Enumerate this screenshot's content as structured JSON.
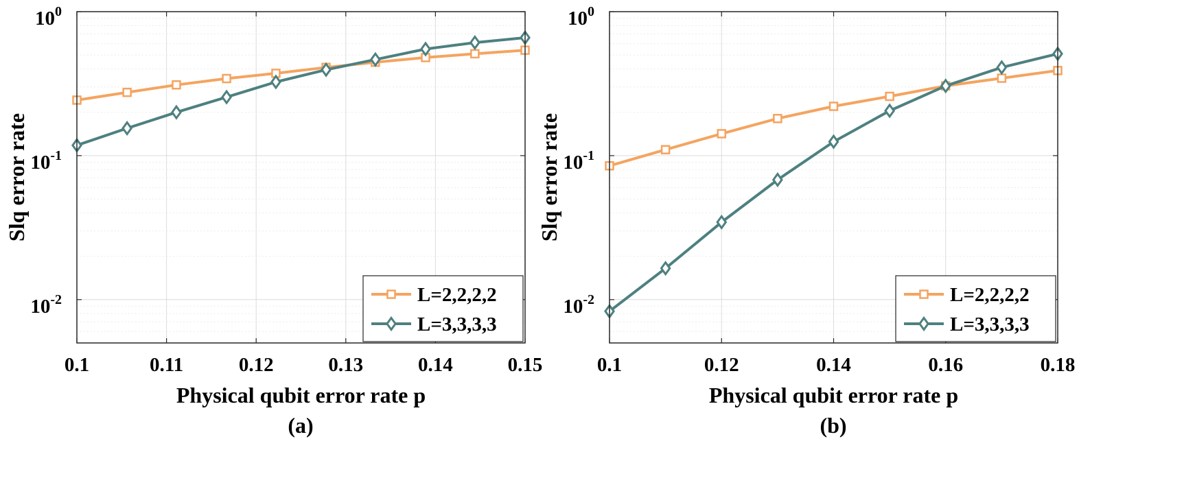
{
  "chart_data": [
    {
      "id": "a",
      "type": "line",
      "caption": "(a)",
      "xlabel": "Physical qubit error rate p",
      "ylabel": "Slq error rate",
      "yscale": "log",
      "xlim": [
        0.1,
        0.15
      ],
      "ylim": [
        0.005,
        1
      ],
      "xticks": [
        0.1,
        0.11,
        0.12,
        0.13,
        0.14,
        0.15
      ],
      "xtick_labels": [
        "0.1",
        "0.11",
        "0.12",
        "0.13",
        "0.14",
        "0.15"
      ],
      "yticks": [
        {
          "value": 0.01,
          "base": "10",
          "exp": "-2"
        },
        {
          "value": 0.1,
          "base": "10",
          "exp": "-1"
        },
        {
          "value": 1,
          "base": "10",
          "exp": "0"
        }
      ],
      "grid": true,
      "legend_position": "bottom-right",
      "x": [
        0.1,
        0.1056,
        0.1111,
        0.1167,
        0.1222,
        0.1278,
        0.1333,
        0.1389,
        0.1444,
        0.15
      ],
      "series": [
        {
          "name": "L=2,2,2,2",
          "marker": "square",
          "color": "#F4A460",
          "values": [
            0.243,
            0.275,
            0.31,
            0.343,
            0.373,
            0.41,
            0.445,
            0.48,
            0.51,
            0.54
          ]
        },
        {
          "name": "L=3,3,3,3",
          "marker": "diamond",
          "color": "#4E8080",
          "values": [
            0.118,
            0.155,
            0.2,
            0.255,
            0.325,
            0.395,
            0.465,
            0.55,
            0.61,
            0.66
          ]
        }
      ]
    },
    {
      "id": "b",
      "type": "line",
      "caption": "(b)",
      "xlabel": "Physical qubit error rate p",
      "ylabel": "Slq error rate",
      "yscale": "log",
      "xlim": [
        0.1,
        0.18
      ],
      "ylim": [
        0.005,
        1
      ],
      "xticks": [
        0.1,
        0.12,
        0.14,
        0.16,
        0.18
      ],
      "xtick_labels": [
        "0.1",
        "0.12",
        "0.14",
        "0.16",
        "0.18"
      ],
      "yticks": [
        {
          "value": 0.01,
          "base": "10",
          "exp": "-2"
        },
        {
          "value": 0.1,
          "base": "10",
          "exp": "-1"
        },
        {
          "value": 1,
          "base": "10",
          "exp": "0"
        }
      ],
      "grid": true,
      "legend_position": "bottom-right",
      "x": [
        0.1,
        0.11,
        0.12,
        0.13,
        0.14,
        0.15,
        0.16,
        0.17,
        0.18
      ],
      "series": [
        {
          "name": "L=2,2,2,2",
          "marker": "square",
          "color": "#F4A460",
          "values": [
            0.085,
            0.11,
            0.142,
            0.181,
            0.22,
            0.258,
            0.305,
            0.345,
            0.39
          ]
        },
        {
          "name": "L=3,3,3,3",
          "marker": "diamond",
          "color": "#4E8080",
          "values": [
            0.0083,
            0.0165,
            0.0345,
            0.068,
            0.125,
            0.205,
            0.305,
            0.41,
            0.51
          ]
        }
      ]
    }
  ]
}
